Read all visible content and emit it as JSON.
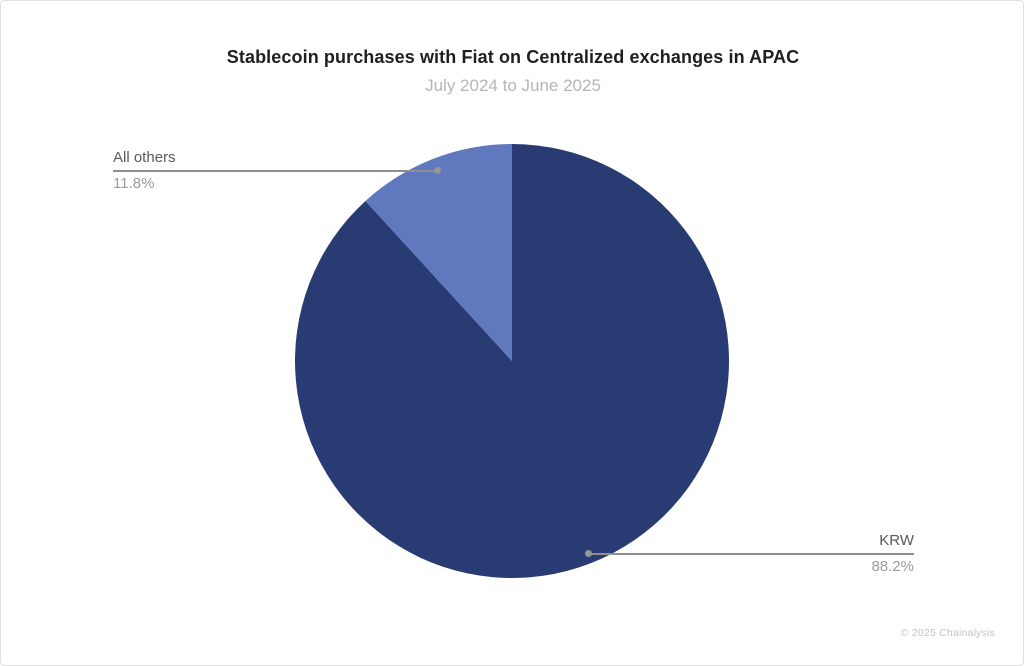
{
  "header": {
    "title": "Stablecoin purchases with Fiat on Centralized exchanges in APAC",
    "subtitle": "July 2024 to June 2025"
  },
  "chart_data": {
    "type": "pie",
    "categories": [
      "KRW",
      "All others"
    ],
    "values": [
      88.2,
      11.8
    ],
    "value_labels": [
      "88.2%",
      "11.8%"
    ],
    "colors": [
      "#283b73",
      "#6078bd"
    ],
    "start_angle_deg": 0,
    "direction": "clockwise",
    "title": "Stablecoin purchases with Fiat on Centralized exchanges in APAC",
    "subtitle": "July 2024 to June 2025",
    "legend": "none",
    "label_style": "callout-leader-lines",
    "callouts": [
      {
        "category": "KRW",
        "pct_label": "88.2%",
        "position": "bottom-right"
      },
      {
        "category": "All others",
        "pct_label": "11.8%",
        "position": "top-left"
      }
    ]
  },
  "footer": {
    "watermark": "© 2025 Chainalysis"
  },
  "theme": {
    "background": "#ffffff",
    "frame_border": "#e0e0e0",
    "title_color": "#1f1f1f",
    "subtitle_color": "#b5b5b5",
    "label_name_color": "#595959",
    "label_pct_color": "#9b9b9b",
    "leader_line_color": "#8f8f8f",
    "watermark_color": "#c4c4c4"
  }
}
